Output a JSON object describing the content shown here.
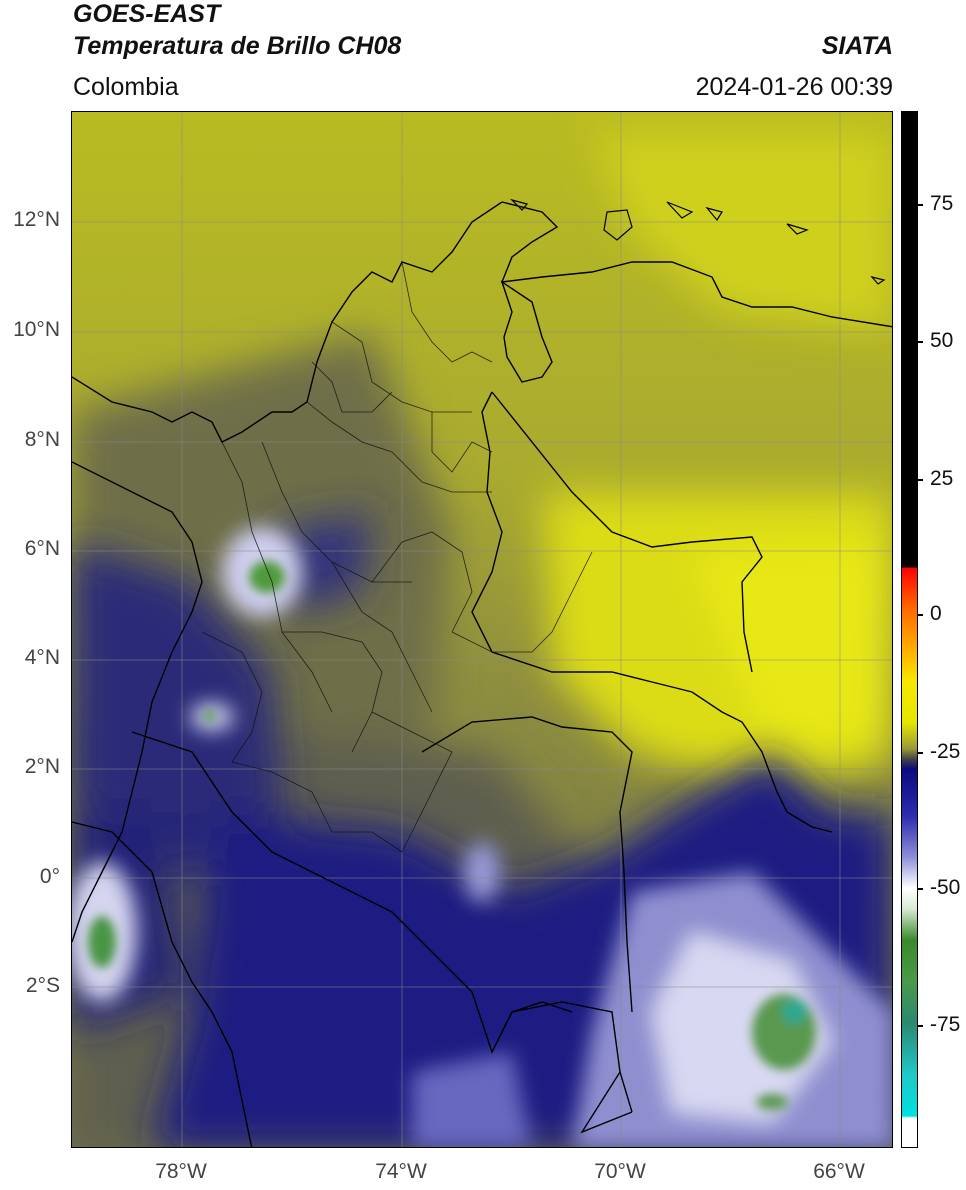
{
  "header": {
    "line1": "GOES-EAST",
    "line2": "Temperatura de Brillo CH08",
    "source": "SIATA",
    "region": "Colombia",
    "datetime": "2024-01-26 00:39"
  },
  "axes": {
    "latitude_labels": [
      "12°N",
      "10°N",
      "8°N",
      "6°N",
      "4°N",
      "2°N",
      "0°",
      "2°S"
    ],
    "longitude_labels": [
      "78°W",
      "74°W",
      "70°W",
      "66°W"
    ]
  },
  "colorbar": {
    "tick_labels": [
      "75",
      "50",
      "25",
      "0",
      "-25",
      "-50",
      "-75"
    ],
    "range": [
      -95,
      90
    ],
    "colors": {
      "warm_black": "#000000",
      "red": "#ff0000",
      "yellow": "#e5e500",
      "navy": "#0a0a80",
      "white": "#ffffff",
      "green": "#3a8a2a",
      "cyan": "#00e0e0"
    }
  }
}
